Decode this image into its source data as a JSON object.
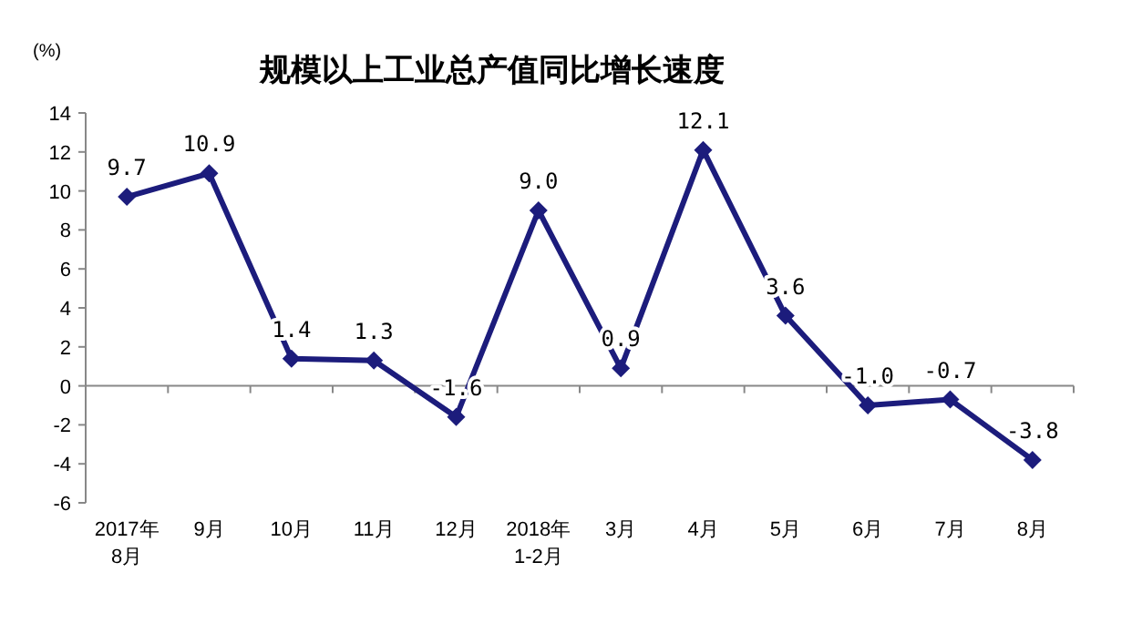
{
  "chart_data": {
    "type": "line",
    "title": "规模以上工业总产值同比增长速度",
    "ylabel": "(%)",
    "categories": [
      "2017年\n8月",
      "9月",
      "10月",
      "11月",
      "12月",
      "2018年\n1-2月",
      "3月",
      "4月",
      "5月",
      "6月",
      "7月",
      "8月"
    ],
    "series": [
      {
        "color": "#1c1c7c",
        "values": [
          9.7,
          10.9,
          1.4,
          1.3,
          -1.6,
          9.0,
          0.9,
          12.1,
          3.6,
          -1.0,
          -0.7,
          -3.8
        ]
      }
    ],
    "ylim": [
      -6,
      14
    ],
    "yticks": [
      -6,
      -4,
      -2,
      0,
      2,
      4,
      6,
      8,
      10,
      12,
      14
    ],
    "value_labels": [
      "9.7",
      "10.9",
      "1.4",
      "1.3",
      "-1.6",
      "9.0",
      "0.9",
      "12.1",
      "3.6",
      "-1.0",
      "-0.7",
      "-3.8"
    ],
    "marker": "diamond",
    "line_style": "solid"
  }
}
